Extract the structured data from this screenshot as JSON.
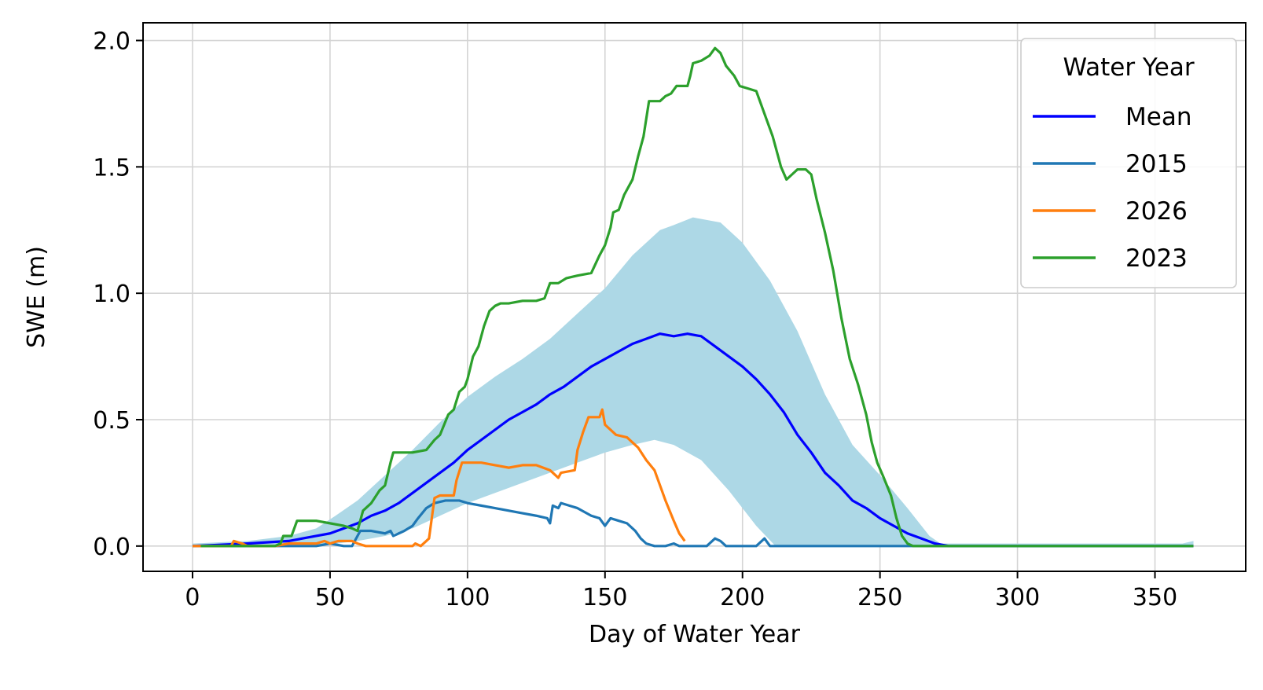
{
  "chart_data": {
    "type": "line",
    "title": "",
    "xlabel": "Day of Water Year",
    "ylabel": "SWE (m)",
    "xlim": [
      -18,
      383
    ],
    "ylim": [
      -0.1,
      2.07
    ],
    "xticks": [
      0,
      50,
      100,
      150,
      200,
      250,
      300,
      350
    ],
    "yticks": [
      0.0,
      0.5,
      1.0,
      1.5,
      2.0
    ],
    "xtick_labels": [
      "0",
      "50",
      "100",
      "150",
      "200",
      "250",
      "300",
      "350"
    ],
    "ytick_labels": [
      "0.0",
      "0.5",
      "1.0",
      "1.5",
      "2.0"
    ],
    "grid": true,
    "legend": {
      "title": "Water Year",
      "position": "top-right"
    },
    "band": {
      "name": "Mean range",
      "color": "#add8e6",
      "upper": [
        [
          0,
          0.01
        ],
        [
          20,
          0.02
        ],
        [
          35,
          0.04
        ],
        [
          45,
          0.07
        ],
        [
          52,
          0.12
        ],
        [
          60,
          0.18
        ],
        [
          70,
          0.28
        ],
        [
          80,
          0.38
        ],
        [
          90,
          0.49
        ],
        [
          100,
          0.59
        ],
        [
          110,
          0.67
        ],
        [
          120,
          0.74
        ],
        [
          130,
          0.82
        ],
        [
          140,
          0.92
        ],
        [
          150,
          1.02
        ],
        [
          160,
          1.15
        ],
        [
          170,
          1.25
        ],
        [
          175,
          1.27
        ],
        [
          182,
          1.3
        ],
        [
          192,
          1.28
        ],
        [
          200,
          1.2
        ],
        [
          210,
          1.05
        ],
        [
          220,
          0.85
        ],
        [
          230,
          0.6
        ],
        [
          240,
          0.4
        ],
        [
          250,
          0.28
        ],
        [
          260,
          0.15
        ],
        [
          268,
          0.04
        ],
        [
          272,
          0.01
        ],
        [
          360,
          0.01
        ],
        [
          364,
          0.02
        ]
      ],
      "lower": [
        [
          0,
          0.0
        ],
        [
          30,
          0.0
        ],
        [
          45,
          0.0
        ],
        [
          60,
          0.02
        ],
        [
          70,
          0.04
        ],
        [
          80,
          0.07
        ],
        [
          90,
          0.12
        ],
        [
          100,
          0.17
        ],
        [
          110,
          0.21
        ],
        [
          120,
          0.25
        ],
        [
          130,
          0.29
        ],
        [
          140,
          0.33
        ],
        [
          150,
          0.37
        ],
        [
          160,
          0.4
        ],
        [
          168,
          0.42
        ],
        [
          175,
          0.4
        ],
        [
          185,
          0.34
        ],
        [
          195,
          0.22
        ],
        [
          205,
          0.08
        ],
        [
          212,
          0.0
        ],
        [
          364,
          0.0
        ]
      ]
    },
    "series": [
      {
        "name": "Mean",
        "color": "#0000ff",
        "points": [
          [
            0,
            0.0
          ],
          [
            20,
            0.01
          ],
          [
            35,
            0.02
          ],
          [
            45,
            0.04
          ],
          [
            50,
            0.05
          ],
          [
            55,
            0.07
          ],
          [
            60,
            0.09
          ],
          [
            65,
            0.12
          ],
          [
            70,
            0.14
          ],
          [
            75,
            0.17
          ],
          [
            80,
            0.21
          ],
          [
            85,
            0.25
          ],
          [
            90,
            0.29
          ],
          [
            95,
            0.33
          ],
          [
            100,
            0.38
          ],
          [
            105,
            0.42
          ],
          [
            110,
            0.46
          ],
          [
            115,
            0.5
          ],
          [
            120,
            0.53
          ],
          [
            125,
            0.56
          ],
          [
            130,
            0.6
          ],
          [
            135,
            0.63
          ],
          [
            140,
            0.67
          ],
          [
            145,
            0.71
          ],
          [
            150,
            0.74
          ],
          [
            155,
            0.77
          ],
          [
            160,
            0.8
          ],
          [
            165,
            0.82
          ],
          [
            170,
            0.84
          ],
          [
            175,
            0.83
          ],
          [
            180,
            0.84
          ],
          [
            185,
            0.83
          ],
          [
            190,
            0.79
          ],
          [
            195,
            0.75
          ],
          [
            200,
            0.71
          ],
          [
            205,
            0.66
          ],
          [
            210,
            0.6
          ],
          [
            215,
            0.53
          ],
          [
            220,
            0.44
          ],
          [
            225,
            0.37
          ],
          [
            230,
            0.29
          ],
          [
            235,
            0.24
          ],
          [
            240,
            0.18
          ],
          [
            245,
            0.15
          ],
          [
            250,
            0.11
          ],
          [
            255,
            0.08
          ],
          [
            260,
            0.05
          ],
          [
            265,
            0.03
          ],
          [
            270,
            0.01
          ],
          [
            275,
            0.0
          ],
          [
            364,
            0.0
          ]
        ]
      },
      {
        "name": "2015",
        "color": "#1f77b4",
        "points": [
          [
            0,
            0.0
          ],
          [
            45,
            0.0
          ],
          [
            50,
            0.01
          ],
          [
            55,
            0.0
          ],
          [
            58,
            0.0
          ],
          [
            61,
            0.06
          ],
          [
            65,
            0.06
          ],
          [
            70,
            0.05
          ],
          [
            72,
            0.06
          ],
          [
            73,
            0.04
          ],
          [
            75,
            0.05
          ],
          [
            77,
            0.06
          ],
          [
            80,
            0.08
          ],
          [
            82,
            0.11
          ],
          [
            85,
            0.15
          ],
          [
            88,
            0.17
          ],
          [
            92,
            0.18
          ],
          [
            97,
            0.18
          ],
          [
            100,
            0.17
          ],
          [
            105,
            0.16
          ],
          [
            110,
            0.15
          ],
          [
            115,
            0.14
          ],
          [
            120,
            0.13
          ],
          [
            125,
            0.12
          ],
          [
            129,
            0.11
          ],
          [
            130,
            0.09
          ],
          [
            131,
            0.16
          ],
          [
            133,
            0.15
          ],
          [
            134,
            0.17
          ],
          [
            137,
            0.16
          ],
          [
            140,
            0.15
          ],
          [
            145,
            0.12
          ],
          [
            148,
            0.11
          ],
          [
            150,
            0.08
          ],
          [
            152,
            0.11
          ],
          [
            155,
            0.1
          ],
          [
            158,
            0.09
          ],
          [
            161,
            0.06
          ],
          [
            163,
            0.03
          ],
          [
            165,
            0.01
          ],
          [
            168,
            0.0
          ],
          [
            172,
            0.0
          ],
          [
            175,
            0.01
          ],
          [
            177,
            0.0
          ],
          [
            187,
            0.0
          ],
          [
            190,
            0.03
          ],
          [
            192,
            0.02
          ],
          [
            194,
            0.0
          ],
          [
            205,
            0.0
          ],
          [
            208,
            0.03
          ],
          [
            210,
            0.0
          ],
          [
            364,
            0.0
          ]
        ]
      },
      {
        "name": "2026",
        "color": "#ff7f0e",
        "points": [
          [
            0,
            0.0
          ],
          [
            14,
            0.0
          ],
          [
            15,
            0.02
          ],
          [
            18,
            0.01
          ],
          [
            20,
            0.0
          ],
          [
            30,
            0.0
          ],
          [
            35,
            0.01
          ],
          [
            45,
            0.01
          ],
          [
            48,
            0.02
          ],
          [
            50,
            0.01
          ],
          [
            53,
            0.02
          ],
          [
            58,
            0.02
          ],
          [
            60,
            0.01
          ],
          [
            63,
            0.0
          ],
          [
            75,
            0.0
          ],
          [
            80,
            0.0
          ],
          [
            81,
            0.01
          ],
          [
            83,
            0.0
          ],
          [
            85,
            0.02
          ],
          [
            86,
            0.03
          ],
          [
            88,
            0.19
          ],
          [
            90,
            0.2
          ],
          [
            95,
            0.2
          ],
          [
            96,
            0.26
          ],
          [
            98,
            0.33
          ],
          [
            100,
            0.33
          ],
          [
            105,
            0.33
          ],
          [
            110,
            0.32
          ],
          [
            115,
            0.31
          ],
          [
            120,
            0.32
          ],
          [
            125,
            0.32
          ],
          [
            130,
            0.3
          ],
          [
            133,
            0.27
          ],
          [
            134,
            0.29
          ],
          [
            139,
            0.3
          ],
          [
            140,
            0.38
          ],
          [
            142,
            0.45
          ],
          [
            144,
            0.51
          ],
          [
            148,
            0.51
          ],
          [
            149,
            0.54
          ],
          [
            150,
            0.48
          ],
          [
            154,
            0.44
          ],
          [
            158,
            0.43
          ],
          [
            162,
            0.39
          ],
          [
            165,
            0.34
          ],
          [
            168,
            0.3
          ],
          [
            170,
            0.24
          ],
          [
            172,
            0.18
          ],
          [
            175,
            0.1
          ],
          [
            177,
            0.05
          ],
          [
            179,
            0.02
          ]
        ]
      },
      {
        "name": "2023",
        "color": "#2ca02c",
        "points": [
          [
            3,
            0.0
          ],
          [
            30,
            0.0
          ],
          [
            32,
            0.01
          ],
          [
            33,
            0.04
          ],
          [
            36,
            0.04
          ],
          [
            38,
            0.1
          ],
          [
            45,
            0.1
          ],
          [
            50,
            0.09
          ],
          [
            55,
            0.08
          ],
          [
            58,
            0.07
          ],
          [
            60,
            0.06
          ],
          [
            62,
            0.14
          ],
          [
            65,
            0.17
          ],
          [
            68,
            0.22
          ],
          [
            70,
            0.24
          ],
          [
            72,
            0.33
          ],
          [
            73,
            0.37
          ],
          [
            80,
            0.37
          ],
          [
            85,
            0.38
          ],
          [
            88,
            0.42
          ],
          [
            90,
            0.44
          ],
          [
            93,
            0.52
          ],
          [
            95,
            0.54
          ],
          [
            97,
            0.61
          ],
          [
            99,
            0.63
          ],
          [
            100,
            0.66
          ],
          [
            102,
            0.75
          ],
          [
            104,
            0.79
          ],
          [
            106,
            0.87
          ],
          [
            108,
            0.93
          ],
          [
            110,
            0.95
          ],
          [
            112,
            0.96
          ],
          [
            115,
            0.96
          ],
          [
            120,
            0.97
          ],
          [
            125,
            0.97
          ],
          [
            128,
            0.98
          ],
          [
            130,
            1.04
          ],
          [
            133,
            1.04
          ],
          [
            136,
            1.06
          ],
          [
            140,
            1.07
          ],
          [
            145,
            1.08
          ],
          [
            148,
            1.15
          ],
          [
            150,
            1.19
          ],
          [
            152,
            1.26
          ],
          [
            153,
            1.32
          ],
          [
            155,
            1.33
          ],
          [
            157,
            1.39
          ],
          [
            160,
            1.45
          ],
          [
            162,
            1.54
          ],
          [
            164,
            1.62
          ],
          [
            166,
            1.76
          ],
          [
            170,
            1.76
          ],
          [
            172,
            1.78
          ],
          [
            174,
            1.79
          ],
          [
            176,
            1.82
          ],
          [
            180,
            1.82
          ],
          [
            181,
            1.86
          ],
          [
            182,
            1.91
          ],
          [
            185,
            1.92
          ],
          [
            188,
            1.94
          ],
          [
            190,
            1.97
          ],
          [
            192,
            1.95
          ],
          [
            194,
            1.9
          ],
          [
            197,
            1.86
          ],
          [
            199,
            1.82
          ],
          [
            202,
            1.81
          ],
          [
            205,
            1.8
          ],
          [
            208,
            1.71
          ],
          [
            211,
            1.62
          ],
          [
            214,
            1.5
          ],
          [
            216,
            1.45
          ],
          [
            218,
            1.47
          ],
          [
            220,
            1.49
          ],
          [
            223,
            1.49
          ],
          [
            225,
            1.47
          ],
          [
            227,
            1.37
          ],
          [
            230,
            1.24
          ],
          [
            233,
            1.09
          ],
          [
            236,
            0.9
          ],
          [
            239,
            0.74
          ],
          [
            242,
            0.64
          ],
          [
            245,
            0.52
          ],
          [
            247,
            0.41
          ],
          [
            249,
            0.33
          ],
          [
            251,
            0.28
          ],
          [
            254,
            0.2
          ],
          [
            256,
            0.11
          ],
          [
            258,
            0.04
          ],
          [
            260,
            0.01
          ],
          [
            262,
            0.0
          ],
          [
            364,
            0.0
          ]
        ]
      }
    ]
  }
}
